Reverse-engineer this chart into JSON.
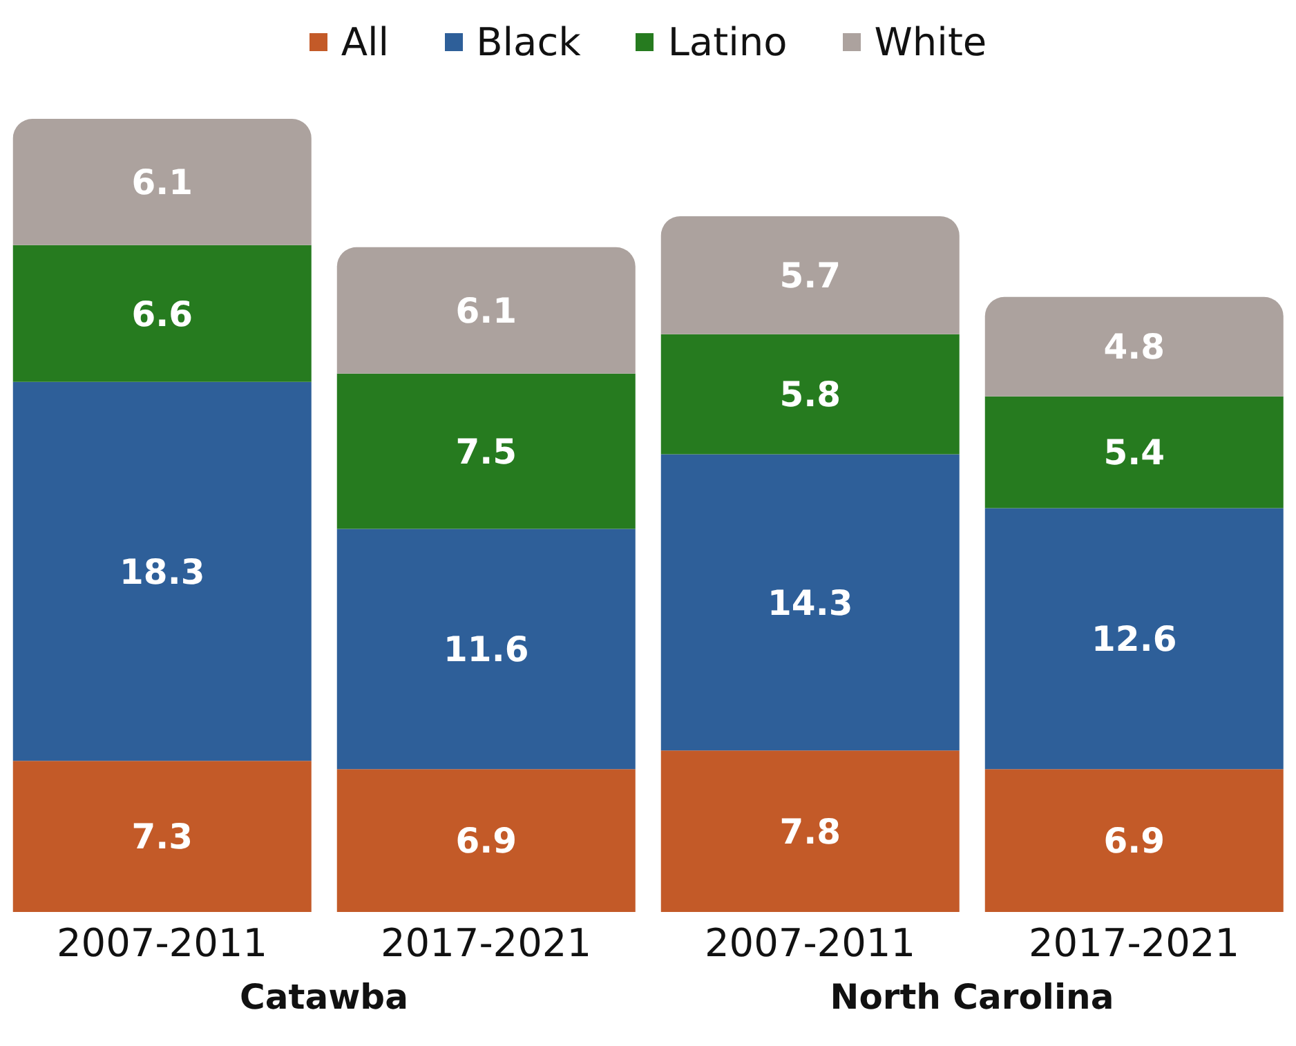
{
  "chart_data": {
    "type": "bar",
    "stacked": true,
    "categories": [
      "2007-2011",
      "2017-2021",
      "2007-2011",
      "2017-2021"
    ],
    "series": [
      {
        "name": "All",
        "color": "#c35a28",
        "values": [
          7.3,
          6.9,
          7.8,
          6.9
        ]
      },
      {
        "name": "Black",
        "color": "#2e5f99",
        "values": [
          18.3,
          11.6,
          14.3,
          12.6
        ]
      },
      {
        "name": "Latino",
        "color": "#267b1f",
        "values": [
          6.6,
          7.5,
          5.8,
          5.4
        ]
      },
      {
        "name": "White",
        "color": "#aca29e",
        "values": [
          6.1,
          6.1,
          5.7,
          4.8
        ]
      }
    ],
    "data_labels": true,
    "legend": "top",
    "tick_labels": "x",
    "annotations": [
      "Catawba",
      "North Carolina"
    ]
  }
}
